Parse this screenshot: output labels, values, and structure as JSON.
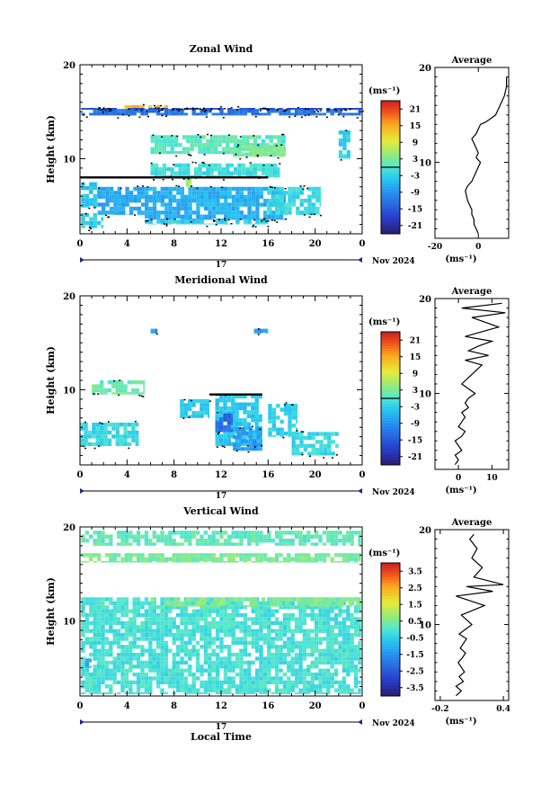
{
  "chart_data": [
    {
      "type": "heatmap",
      "title": "Zonal Wind",
      "ylabel": "Height (km)",
      "ylim": [
        2,
        20
      ],
      "xlim": [
        0,
        24
      ],
      "xticks": [
        "0",
        "4",
        "8",
        "12",
        "16",
        "20",
        "0"
      ],
      "yticks": [
        "20",
        "10"
      ],
      "day_label": "17",
      "month_label": "Nov 2024",
      "colorbar": {
        "unit": "(ms⁻¹)",
        "ticks": [
          "21",
          "15",
          "9",
          "3",
          "-3",
          "-9",
          "-15",
          "-21"
        ],
        "range": [
          -24,
          24
        ],
        "zero_line": true
      },
      "contour_overlay": true,
      "cells": [
        {
          "t0": 0.1,
          "t1": 23.9,
          "h0": 14.6,
          "h1": 15.3,
          "v": -12
        },
        {
          "t0": 3.8,
          "t1": 7.5,
          "h0": 15.3,
          "h1": 15.7,
          "v": 14
        },
        {
          "t0": 0.1,
          "t1": 24.0,
          "h0": 15.2,
          "h1": 15.4,
          "v": -16
        },
        {
          "t0": 6.0,
          "t1": 17.5,
          "h0": 10.5,
          "h1": 12.5,
          "v": 1
        },
        {
          "t0": 13.0,
          "t1": 17.5,
          "h0": 10.2,
          "h1": 11.5,
          "v": 3
        },
        {
          "t0": 5.5,
          "t1": 17.5,
          "h0": 3.5,
          "h1": 7.0,
          "v": -6
        },
        {
          "t0": 5.5,
          "t1": 16.0,
          "h0": 3.0,
          "h1": 3.5,
          "v": -3
        },
        {
          "t0": 16.0,
          "t1": 20.5,
          "h0": 4.0,
          "h1": 7.0,
          "v": -2
        },
        {
          "t0": 1.5,
          "t1": 5.5,
          "h0": 4.0,
          "h1": 7.0,
          "v": -7
        },
        {
          "t0": 0.1,
          "t1": 1.5,
          "h0": 4.8,
          "h1": 7.5,
          "v": -4
        },
        {
          "t0": 6.0,
          "t1": 17.0,
          "h0": 8.0,
          "h1": 9.5,
          "v": -1
        },
        {
          "t0": 0.1,
          "t1": 2.0,
          "h0": 2.6,
          "h1": 4.2,
          "v": -3
        },
        {
          "t0": 9.0,
          "t1": 9.5,
          "h0": 7.0,
          "h1": 8.0,
          "v": 6
        },
        {
          "t0": 22.0,
          "t1": 23.0,
          "h0": 10.0,
          "h1": 13.0,
          "v": -3
        }
      ],
      "zero_contour": {
        "t0": 0.0,
        "t1": 16.0,
        "h": 8.0
      },
      "profile": {
        "title": "Average",
        "xticks": [
          -20,
          0
        ],
        "xlim": [
          -20,
          14
        ],
        "ylim": [
          2,
          20
        ],
        "yticks": [
          "20",
          "10"
        ],
        "xlabel": "(ms⁻¹)",
        "x": [
          0,
          -1,
          -2,
          -2,
          -3,
          -3,
          -4,
          -5,
          -6,
          -5,
          -3,
          -2,
          -1,
          0,
          1,
          -1,
          0,
          -1,
          -2,
          -3,
          -1,
          0,
          1,
          3,
          5,
          8,
          10,
          12,
          13,
          13,
          13
        ],
        "y": [
          2.5,
          3.0,
          3.5,
          4.0,
          4.5,
          5.0,
          5.5,
          6.0,
          7.0,
          7.5,
          8.0,
          8.5,
          9.0,
          9.5,
          10.0,
          10.5,
          11.0,
          11.5,
          12.0,
          12.5,
          13.0,
          13.5,
          14.0,
          14.2,
          14.5,
          15.0,
          16.0,
          17.0,
          18.0,
          18.5,
          19.0
        ]
      }
    },
    {
      "type": "heatmap",
      "title": "Meridional Wind",
      "ylabel": "Height (km)",
      "ylim": [
        2,
        20
      ],
      "xlim": [
        0,
        24
      ],
      "xticks": [
        "0",
        "4",
        "8",
        "12",
        "16",
        "20",
        "0"
      ],
      "yticks": [
        "20",
        "10"
      ],
      "day_label": "17",
      "month_label": "Nov 2024",
      "colorbar": {
        "unit": "(ms⁻¹)",
        "ticks": [
          "21",
          "15",
          "9",
          "3",
          "-3",
          "-9",
          "-15",
          "-21"
        ],
        "range": [
          -24,
          24
        ],
        "zero_line": true
      },
      "contour_overlay": true,
      "cells": [
        {
          "t0": 6.0,
          "t1": 6.6,
          "h0": 16.0,
          "h1": 16.5,
          "v": -8
        },
        {
          "t0": 14.8,
          "t1": 16.0,
          "h0": 16.0,
          "h1": 16.5,
          "v": -8
        },
        {
          "t0": 11.5,
          "t1": 15.5,
          "h0": 4.0,
          "h1": 9.5,
          "v": -4
        },
        {
          "t0": 11.5,
          "t1": 13.0,
          "h0": 5.5,
          "h1": 7.5,
          "v": -13
        },
        {
          "t0": 13.0,
          "t1": 15.5,
          "h0": 3.5,
          "h1": 6.0,
          "v": -8
        },
        {
          "t0": 0.0,
          "t1": 5.0,
          "h0": 4.0,
          "h1": 6.5,
          "v": -2
        },
        {
          "t0": 8.5,
          "t1": 11.0,
          "h0": 7.0,
          "h1": 9.0,
          "v": -4
        },
        {
          "t0": 18.0,
          "t1": 22.0,
          "h0": 3.0,
          "h1": 5.5,
          "v": -2
        },
        {
          "t0": 1.0,
          "t1": 5.5,
          "h0": 9.5,
          "h1": 11.0,
          "v": 2
        },
        {
          "t0": 16.0,
          "t1": 18.5,
          "h0": 5.0,
          "h1": 8.5,
          "v": -3
        }
      ],
      "zero_contour": {
        "t0": 11.0,
        "t1": 15.5,
        "h": 9.5
      },
      "profile": {
        "title": "Average",
        "xticks": [
          0,
          10
        ],
        "xlim": [
          -7,
          15
        ],
        "ylim": [
          2,
          20
        ],
        "yticks": [
          "20",
          "10"
        ],
        "xlabel": "(ms⁻¹)",
        "x": [
          -1,
          0,
          -1,
          1,
          0,
          -1,
          1,
          2,
          0,
          1,
          2,
          1,
          3,
          2,
          3,
          5,
          1,
          4,
          7,
          2,
          9,
          3,
          6,
          10,
          2,
          12,
          4,
          14,
          1,
          13
        ],
        "y": [
          2.5,
          3.0,
          3.5,
          4.0,
          4.5,
          5.0,
          5.5,
          6.0,
          6.5,
          7.0,
          7.5,
          8.0,
          8.5,
          9.0,
          9.5,
          10.0,
          11.0,
          12.0,
          13.0,
          13.5,
          14.0,
          14.5,
          15.0,
          15.5,
          16.0,
          17.0,
          18.0,
          18.5,
          19.0,
          19.5
        ]
      }
    },
    {
      "type": "heatmap",
      "title": "Vertical Wind",
      "ylabel": "Height (km)",
      "xlabel": "Local Time",
      "ylim": [
        2,
        20
      ],
      "xlim": [
        0,
        24
      ],
      "xticks": [
        "0",
        "4",
        "8",
        "12",
        "16",
        "20",
        "0"
      ],
      "yticks": [
        "20",
        "10"
      ],
      "day_label": "17",
      "month_label": "Nov 2024",
      "colorbar": {
        "unit": "(ms⁻¹)",
        "ticks": [
          "3.5",
          "2.5",
          "1.5",
          "0.5",
          "-0.5",
          "-1.5",
          "-2.5",
          "-3.5"
        ],
        "range": [
          -4,
          4
        ],
        "zero_line": false
      },
      "contour_overlay": false,
      "cells": [
        {
          "t0": 0.1,
          "t1": 23.9,
          "h0": 18.0,
          "h1": 19.6,
          "v": 0.2
        },
        {
          "t0": 0.1,
          "t1": 23.9,
          "h0": 16.2,
          "h1": 17.2,
          "v": 0.5
        },
        {
          "t0": 0.1,
          "t1": 23.9,
          "h0": 2.2,
          "h1": 12.5,
          "v": -0.1
        },
        {
          "t0": 6.0,
          "t1": 23.9,
          "h0": 11.5,
          "h1": 12.5,
          "v": 0.6
        },
        {
          "t0": 0.1,
          "t1": 1.0,
          "h0": 5.0,
          "h1": 6.0,
          "v": -1.2
        }
      ],
      "profile": {
        "title": "Average",
        "xticks": [
          -0.2,
          0.4
        ],
        "xlim": [
          -0.25,
          0.45
        ],
        "ylim": [
          2,
          20
        ],
        "yticks": [
          "20",
          "10"
        ],
        "xlabel": "(ms⁻¹)",
        "x": [
          -0.05,
          0.0,
          -0.05,
          0.02,
          -0.02,
          0.03,
          0.0,
          -0.03,
          0.01,
          0.04,
          -0.01,
          0.02,
          0.05,
          -0.02,
          0.1,
          0.0,
          0.22,
          -0.05,
          0.3,
          0.05,
          0.4,
          0.12,
          0.2,
          0.1,
          0.15,
          0.08,
          0.12
        ],
        "y": [
          2.5,
          3.0,
          3.5,
          4.0,
          4.5,
          5.0,
          5.5,
          6.0,
          6.5,
          7.0,
          7.5,
          8.0,
          8.5,
          9.0,
          10.0,
          11.0,
          12.0,
          13.0,
          13.5,
          14.0,
          14.2,
          15.0,
          16.0,
          17.0,
          18.0,
          19.0,
          19.5
        ]
      }
    }
  ]
}
